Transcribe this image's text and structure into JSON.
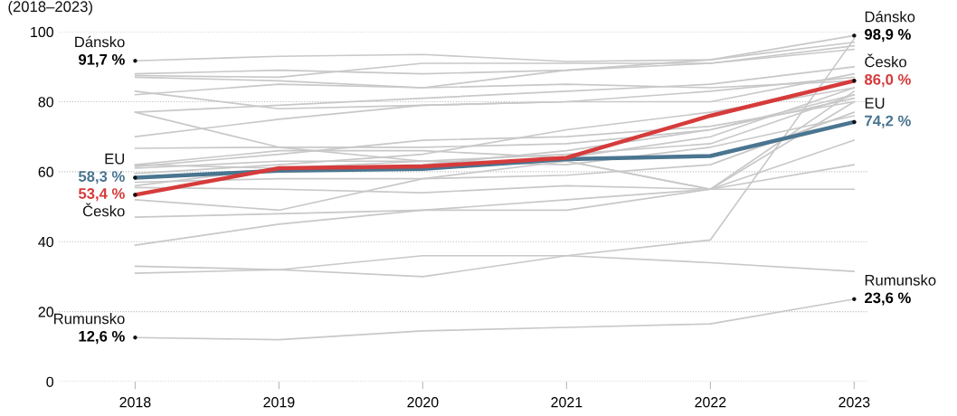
{
  "chart_data": {
    "type": "line",
    "subtitle": "(2018–2023)",
    "x": [
      2018,
      2019,
      2020,
      2021,
      2022,
      2023
    ],
    "xlim": [
      2017.47,
      2023.1
    ],
    "xticks": [
      2018,
      2019,
      2020,
      2021,
      2022,
      2023
    ],
    "ylim": [
      0,
      100
    ],
    "yticks": [
      0,
      20,
      40,
      60,
      80,
      100
    ],
    "grid": "y",
    "legend": false,
    "marker": "none",
    "line_style": "solid",
    "series": [
      {
        "color": "#c8c8c8",
        "values": [
          88,
          89,
          88,
          89,
          91,
          95
        ]
      },
      {
        "color": "#c8c8c8",
        "values": [
          87.5,
          87,
          91,
          91,
          91,
          96
        ]
      },
      {
        "color": "#c8c8c8",
        "values": [
          87,
          86,
          84,
          89,
          92,
          97
        ]
      },
      {
        "color": "#c8c8c8",
        "values": [
          83,
          78,
          79,
          80,
          80,
          88
        ]
      },
      {
        "color": "#c8c8c8",
        "values": [
          82,
          85,
          84,
          85,
          84,
          86
        ]
      },
      {
        "color": "#c8c8c8",
        "values": [
          77,
          79,
          81,
          83,
          85,
          90
        ]
      },
      {
        "color": "#c8c8c8",
        "values": [
          70,
          75,
          79,
          80,
          83,
          87
        ]
      },
      {
        "color": "#c8c8c8",
        "values": [
          66.7,
          67,
          67,
          68,
          72,
          82
        ]
      },
      {
        "color": "#c8c8c8",
        "values": [
          62,
          66,
          66,
          64,
          70,
          84
        ]
      },
      {
        "color": "#c8c8c8",
        "values": [
          61.5,
          65,
          69,
          70,
          73,
          80
        ]
      },
      {
        "color": "#c8c8c8",
        "values": [
          61,
          63,
          63,
          65,
          68,
          82
        ]
      },
      {
        "color": "#c8c8c8",
        "values": [
          59.5,
          62,
          65,
          72,
          77,
          84
        ]
      },
      {
        "color": "#c8c8c8",
        "values": [
          57,
          58,
          58,
          59,
          62,
          77
        ]
      },
      {
        "color": "#c8c8c8",
        "values": [
          56,
          61,
          62,
          66,
          72,
          81
        ]
      },
      {
        "color": "#c8c8c8",
        "values": [
          55.5,
          55,
          54,
          56,
          55,
          55
        ]
      },
      {
        "color": "#c8c8c8",
        "values": [
          52,
          49,
          58,
          63,
          55,
          69
        ]
      },
      {
        "color": "#c8c8c8",
        "values": [
          47,
          48,
          49,
          49,
          55,
          62
        ]
      },
      {
        "color": "#c8c8c8",
        "values": [
          39,
          45,
          49,
          52,
          55,
          80
        ]
      },
      {
        "color": "#c8c8c8",
        "values": [
          62,
          61,
          63,
          62,
          67,
          76
        ]
      },
      {
        "color": "#c8c8c8",
        "values": [
          77,
          67,
          63,
          63,
          55,
          83
        ]
      },
      {
        "color": "#c8c8c8",
        "values": [
          31,
          32,
          30,
          36,
          40.5,
          98
        ]
      },
      {
        "color": "#c8c8c8",
        "values": [
          33,
          32,
          36,
          36,
          34,
          31.5
        ]
      },
      {
        "name": "Dánsko",
        "color": "#c8c8c8",
        "values": [
          91.7,
          93,
          93.5,
          91.5,
          92,
          98.9
        ],
        "value_labels": [
          "91,7 %",
          null,
          null,
          null,
          null,
          "98,9 %"
        ]
      },
      {
        "name": "Rumunsko",
        "color": "#c8c8c8",
        "values": [
          12.6,
          12,
          14.5,
          15.5,
          16.5,
          23.6
        ],
        "value_labels": [
          "12,6 %",
          null,
          null,
          null,
          null,
          "23,6 %"
        ]
      },
      {
        "name": "EU",
        "color": "#4a7590",
        "values": [
          58.3,
          60.3,
          60.8,
          63.6,
          64.5,
          74.2
        ],
        "value_labels": [
          "58,3 %",
          null,
          null,
          null,
          null,
          "74,2 %"
        ]
      },
      {
        "name": "Česko",
        "color": "#d63b3b",
        "values": [
          53.4,
          61,
          61.5,
          64,
          76,
          86.0
        ],
        "value_labels": [
          "53,4 %",
          null,
          null,
          null,
          null,
          "86,0 %"
        ]
      }
    ]
  }
}
